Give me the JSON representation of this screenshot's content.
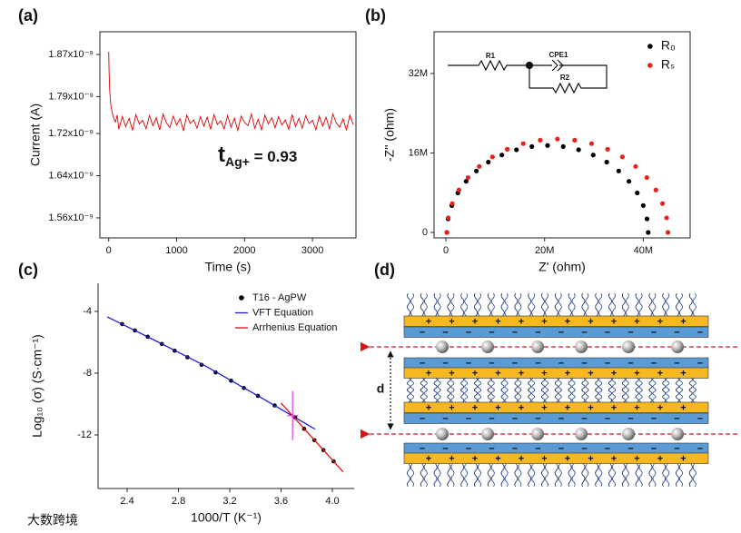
{
  "chart_data": [
    {
      "type": "line",
      "label": "(a)",
      "xlabel": "Time (s)",
      "ylabel": "Current (A)",
      "frame": true,
      "grid": false,
      "xlim": [
        -130,
        3640
      ],
      "xticks": [
        0,
        1000,
        2000,
        3000
      ],
      "ylim": [
        1.522e-09,
        1.913e-09
      ],
      "yticks": [
        {
          "value": 1.56e-09,
          "label": "1.56x10⁻⁹"
        },
        {
          "value": 1.64e-09,
          "label": "1.64x10⁻⁹"
        },
        {
          "value": 1.72e-09,
          "label": "1.72x10⁻⁹"
        },
        {
          "value": 1.79e-09,
          "label": "1.79x10⁻⁹"
        },
        {
          "value": 1.87e-09,
          "label": "1.87x10⁻⁹"
        }
      ],
      "annotation": {
        "text": "t",
        "subscript": "Ag+",
        "suffix": " = 0.93"
      },
      "series": [
        {
          "color": "#e00000",
          "x": [
            0,
            5,
            15,
            30,
            50,
            75,
            100,
            125,
            150,
            200,
            250,
            300,
            350,
            400,
            450,
            500,
            550,
            600,
            650,
            700,
            750,
            800,
            850,
            900,
            950,
            1000,
            1050,
            1100,
            1150,
            1200,
            1250,
            1300,
            1350,
            1400,
            1450,
            1500,
            1550,
            1600,
            1650,
            1700,
            1750,
            1800,
            1850,
            1900,
            1950,
            2000,
            2050,
            2100,
            2150,
            2200,
            2250,
            2300,
            2350,
            2400,
            2450,
            2500,
            2550,
            2600,
            2650,
            2700,
            2750,
            2800,
            2850,
            2900,
            2950,
            3000,
            3050,
            3100,
            3150,
            3200,
            3250,
            3300,
            3350,
            3400,
            3450,
            3500,
            3550,
            3600
          ],
          "values": [
            1.875e-09,
            1.84e-09,
            1.8e-09,
            1.775e-09,
            1.76e-09,
            1.748e-09,
            1.742e-09,
            1.755e-09,
            1.728e-09,
            1.752e-09,
            1.733e-09,
            1.749e-09,
            1.726e-09,
            1.756e-09,
            1.738e-09,
            1.745e-09,
            1.729e-09,
            1.754e-09,
            1.735e-09,
            1.75e-09,
            1.727e-09,
            1.757e-09,
            1.74e-09,
            1.731e-09,
            1.753e-09,
            1.736e-09,
            1.748e-09,
            1.725e-09,
            1.755e-09,
            1.739e-09,
            1.746e-09,
            1.73e-09,
            1.752e-09,
            1.734e-09,
            1.751e-09,
            1.728e-09,
            1.756e-09,
            1.737e-09,
            1.744e-09,
            1.729e-09,
            1.754e-09,
            1.732e-09,
            1.749e-09,
            1.726e-09,
            1.753e-09,
            1.741e-09,
            1.735e-09,
            1.757e-09,
            1.73e-09,
            1.747e-09,
            1.727e-09,
            1.755e-09,
            1.738e-09,
            1.75e-09,
            1.731e-09,
            1.752e-09,
            1.736e-09,
            1.746e-09,
            1.728e-09,
            1.756e-09,
            1.733e-09,
            1.749e-09,
            1.73e-09,
            1.754e-09,
            1.739e-09,
            1.745e-09,
            1.727e-09,
            1.753e-09,
            1.734e-09,
            1.751e-09,
            1.729e-09,
            1.757e-09,
            1.74e-09,
            1.732e-09,
            1.748e-09,
            1.726e-09,
            1.755e-09,
            1.737e-09
          ]
        }
      ]
    },
    {
      "type": "scatter",
      "label": "(b)",
      "xlabel": "Z' (ohm)",
      "ylabel": "-Z'' (ohm)",
      "frame": true,
      "grid": false,
      "legend": "upper right",
      "xlim": [
        -2400000,
        49500000
      ],
      "xticks": [
        0,
        {
          "value": 20000000,
          "label": "20M"
        },
        {
          "value": 40000000,
          "label": "40M"
        }
      ],
      "ylim": [
        -1100000,
        40400000
      ],
      "yticks": [
        0,
        {
          "value": 16000000,
          "label": "16M"
        },
        {
          "value": 32000000,
          "label": "32M"
        }
      ],
      "inset_labels": [
        "R1",
        "CPE1",
        "R2"
      ],
      "series": [
        {
          "name": "R₀",
          "color": "#000000",
          "x": [
            200000,
            440000,
            1200000,
            2420000,
            4100000,
            6180000,
            8600000,
            11340000,
            14300000,
            17420000,
            20600000,
            23780000,
            26900000,
            29860000,
            32600000,
            35020000,
            37100000,
            38780000,
            40000000,
            40760000,
            41000000
          ],
          "values": [
            0,
            2730000,
            5410000,
            7950000,
            10290000,
            12370000,
            14160000,
            15590000,
            16640000,
            17290000,
            17500000,
            17290000,
            16640000,
            15590000,
            14160000,
            12370000,
            10290000,
            7950000,
            5410000,
            2730000,
            0
          ]
        },
        {
          "name": "Rₛ",
          "color": "#e8211d",
          "x": [
            200000,
            470000,
            1300000,
            2640000,
            4480000,
            6760000,
            9430000,
            12430000,
            15680000,
            19110000,
            22600000,
            26090000,
            29520000,
            32770000,
            35770000,
            38440000,
            40720000,
            42560000,
            43900000,
            44730000,
            45000000
          ],
          "values": [
            0,
            2930000,
            5810000,
            8540000,
            11050000,
            13290000,
            15210000,
            16750000,
            17880000,
            18570000,
            18800000,
            18570000,
            17880000,
            16750000,
            15210000,
            13290000,
            11050000,
            8540000,
            5810000,
            2930000,
            0
          ]
        }
      ]
    },
    {
      "type": "scatter",
      "label": "(c)",
      "xlabel": "1000/T (K⁻¹)",
      "ylabel": "Log₁₀ (σ) (S·cm⁻¹)",
      "frame": false,
      "grid": false,
      "legend": "upper right",
      "legend_text": "colored",
      "xlim": [
        2.173,
        4.17
      ],
      "xticks": [
        2.4,
        2.8,
        3.2,
        3.6,
        {
          "value": 4,
          "label": "4.0"
        }
      ],
      "ylim": [
        -15.47,
        -2.18
      ],
      "yticks": [
        -4,
        -8,
        -12
      ],
      "crossover": {
        "x": 3.69,
        "y": -10.75,
        "color": "#e040e0"
      },
      "series": [
        {
          "name": "T16 - AgPW",
          "type": "scatter",
          "color": "#000000",
          "x": [
            2.36,
            2.46,
            2.56,
            2.67,
            2.77,
            2.87,
            2.98,
            3.09,
            3.21,
            3.31,
            3.42,
            3.55,
            3.71,
            3.78,
            3.86,
            3.93,
            4.01
          ],
          "values": [
            -4.82,
            -5.23,
            -5.64,
            -6.11,
            -6.54,
            -6.97,
            -7.46,
            -7.95,
            -8.49,
            -8.96,
            -9.47,
            -10.09,
            -10.86,
            -11.6,
            -12.34,
            -12.98,
            -13.71
          ]
        },
        {
          "name": "VFT Equation",
          "type": "line",
          "color": "#1f1fd0",
          "x": [
            2.244,
            2.6,
            3.0,
            3.4,
            3.865
          ],
          "values": [
            -4.35,
            -5.81,
            -7.49,
            -9.37,
            -11.62
          ]
        },
        {
          "name": "Arrhenius Equation",
          "type": "line",
          "color": "#e01010",
          "x": [
            3.6,
            4.085
          ],
          "values": [
            -9.94,
            -14.4
          ]
        }
      ]
    }
  ],
  "diagram": {
    "label": "(d)",
    "spacing_label": "d",
    "signs": [
      "+",
      "−"
    ]
  },
  "watermark": "大数跨境"
}
